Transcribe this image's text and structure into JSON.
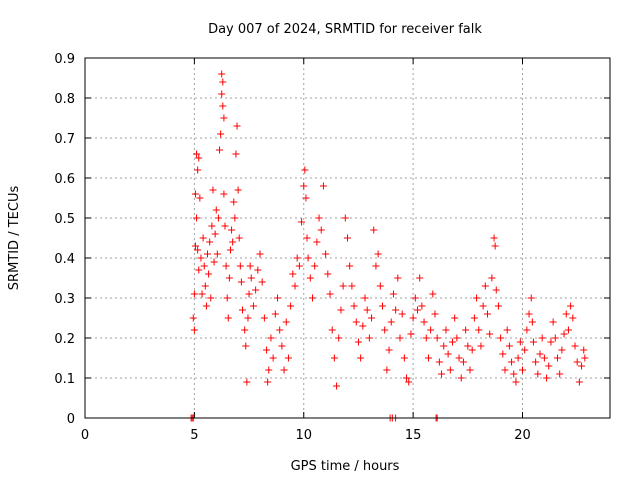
{
  "chart_data": {
    "type": "scatter",
    "title": "Day 007 of 2024, SRMTID for receiver falk",
    "xlabel": "GPS time / hours",
    "ylabel": "SRMTID / TECUs",
    "xlim": [
      0,
      24
    ],
    "ylim": [
      0,
      0.9
    ],
    "grid": true,
    "marker": "+",
    "color": "#ff0000",
    "x_ticks": [
      0,
      5,
      10,
      15,
      20
    ],
    "x_tick_labels": [
      "0",
      "5",
      "10",
      "15",
      "20"
    ],
    "y_ticks": [
      0,
      0.1,
      0.2,
      0.3,
      0.4,
      0.5,
      0.6,
      0.7,
      0.8,
      0.9
    ],
    "y_tick_labels": [
      "0",
      "0.1",
      "0.2",
      "0.3",
      "0.4",
      "0.5",
      "0.6",
      "0.7",
      "0.8",
      "0.9"
    ],
    "series": [
      {
        "name": "SRMTID",
        "points": [
          [
            4.85,
            0.0
          ],
          [
            4.9,
            0.0
          ],
          [
            4.95,
            0.0
          ],
          [
            13.95,
            0.0
          ],
          [
            14.05,
            0.0
          ],
          [
            14.2,
            0.0
          ],
          [
            16.05,
            0.0
          ],
          [
            16.1,
            0.0
          ],
          [
            4.95,
            0.25
          ],
          [
            5.0,
            0.22
          ],
          [
            5.0,
            0.31
          ],
          [
            5.05,
            0.56
          ],
          [
            5.05,
            0.43
          ],
          [
            5.1,
            0.66
          ],
          [
            5.1,
            0.5
          ],
          [
            5.15,
            0.62
          ],
          [
            5.15,
            0.42
          ],
          [
            5.2,
            0.65
          ],
          [
            5.2,
            0.37
          ],
          [
            5.25,
            0.55
          ],
          [
            5.3,
            0.4
          ],
          [
            5.35,
            0.31
          ],
          [
            5.4,
            0.45
          ],
          [
            5.45,
            0.38
          ],
          [
            5.5,
            0.33
          ],
          [
            5.55,
            0.28
          ],
          [
            5.6,
            0.41
          ],
          [
            5.65,
            0.36
          ],
          [
            5.7,
            0.44
          ],
          [
            5.75,
            0.3
          ],
          [
            5.8,
            0.48
          ],
          [
            5.85,
            0.57
          ],
          [
            5.9,
            0.39
          ],
          [
            5.95,
            0.46
          ],
          [
            6.0,
            0.52
          ],
          [
            6.05,
            0.41
          ],
          [
            6.1,
            0.5
          ],
          [
            6.15,
            0.67
          ],
          [
            6.2,
            0.71
          ],
          [
            6.25,
            0.86
          ],
          [
            6.25,
            0.81
          ],
          [
            6.3,
            0.78
          ],
          [
            6.3,
            0.84
          ],
          [
            6.35,
            0.75
          ],
          [
            6.35,
            0.56
          ],
          [
            6.4,
            0.48
          ],
          [
            6.45,
            0.38
          ],
          [
            6.5,
            0.3
          ],
          [
            6.55,
            0.25
          ],
          [
            6.6,
            0.35
          ],
          [
            6.65,
            0.42
          ],
          [
            6.7,
            0.47
          ],
          [
            6.75,
            0.44
          ],
          [
            6.8,
            0.54
          ],
          [
            6.85,
            0.5
          ],
          [
            6.9,
            0.66
          ],
          [
            6.95,
            0.73
          ],
          [
            7.0,
            0.57
          ],
          [
            7.05,
            0.45
          ],
          [
            7.1,
            0.38
          ],
          [
            7.15,
            0.34
          ],
          [
            7.2,
            0.27
          ],
          [
            7.3,
            0.22
          ],
          [
            7.35,
            0.18
          ],
          [
            7.4,
            0.09
          ],
          [
            7.45,
            0.25
          ],
          [
            7.5,
            0.31
          ],
          [
            7.55,
            0.38
          ],
          [
            7.6,
            0.35
          ],
          [
            7.7,
            0.28
          ],
          [
            7.8,
            0.32
          ],
          [
            7.9,
            0.37
          ],
          [
            8.0,
            0.41
          ],
          [
            8.1,
            0.34
          ],
          [
            8.2,
            0.25
          ],
          [
            8.3,
            0.17
          ],
          [
            8.35,
            0.09
          ],
          [
            8.4,
            0.12
          ],
          [
            8.5,
            0.2
          ],
          [
            8.6,
            0.15
          ],
          [
            8.7,
            0.26
          ],
          [
            8.8,
            0.3
          ],
          [
            8.9,
            0.22
          ],
          [
            9.0,
            0.18
          ],
          [
            9.1,
            0.12
          ],
          [
            9.2,
            0.24
          ],
          [
            9.3,
            0.15
          ],
          [
            9.4,
            0.28
          ],
          [
            9.5,
            0.36
          ],
          [
            9.6,
            0.33
          ],
          [
            9.7,
            0.4
          ],
          [
            9.8,
            0.38
          ],
          [
            9.9,
            0.49
          ],
          [
            10.0,
            0.58
          ],
          [
            10.05,
            0.62
          ],
          [
            10.1,
            0.55
          ],
          [
            10.15,
            0.45
          ],
          [
            10.2,
            0.4
          ],
          [
            10.3,
            0.35
          ],
          [
            10.4,
            0.3
          ],
          [
            10.5,
            0.38
          ],
          [
            10.6,
            0.44
          ],
          [
            10.7,
            0.5
          ],
          [
            10.8,
            0.47
          ],
          [
            10.9,
            0.58
          ],
          [
            11.0,
            0.41
          ],
          [
            11.1,
            0.36
          ],
          [
            11.2,
            0.31
          ],
          [
            11.3,
            0.22
          ],
          [
            11.4,
            0.15
          ],
          [
            11.5,
            0.08
          ],
          [
            11.6,
            0.2
          ],
          [
            11.7,
            0.27
          ],
          [
            11.8,
            0.33
          ],
          [
            11.9,
            0.5
          ],
          [
            12.0,
            0.45
          ],
          [
            12.1,
            0.38
          ],
          [
            12.2,
            0.33
          ],
          [
            12.3,
            0.28
          ],
          [
            12.4,
            0.24
          ],
          [
            12.5,
            0.19
          ],
          [
            12.6,
            0.15
          ],
          [
            12.7,
            0.23
          ],
          [
            12.8,
            0.3
          ],
          [
            12.9,
            0.27
          ],
          [
            13.0,
            0.2
          ],
          [
            13.1,
            0.25
          ],
          [
            13.2,
            0.47
          ],
          [
            13.3,
            0.38
          ],
          [
            13.4,
            0.41
          ],
          [
            13.5,
            0.33
          ],
          [
            13.6,
            0.28
          ],
          [
            13.7,
            0.22
          ],
          [
            13.8,
            0.12
          ],
          [
            13.9,
            0.17
          ],
          [
            14.0,
            0.24
          ],
          [
            14.1,
            0.31
          ],
          [
            14.2,
            0.27
          ],
          [
            14.3,
            0.35
          ],
          [
            14.4,
            0.2
          ],
          [
            14.5,
            0.26
          ],
          [
            14.6,
            0.15
          ],
          [
            14.7,
            0.1
          ],
          [
            14.8,
            0.09
          ],
          [
            14.9,
            0.21
          ],
          [
            15.0,
            0.25
          ],
          [
            15.1,
            0.3
          ],
          [
            15.2,
            0.27
          ],
          [
            15.3,
            0.35
          ],
          [
            15.4,
            0.28
          ],
          [
            15.5,
            0.24
          ],
          [
            15.6,
            0.2
          ],
          [
            15.7,
            0.15
          ],
          [
            15.8,
            0.22
          ],
          [
            15.9,
            0.31
          ],
          [
            16.0,
            0.26
          ],
          [
            16.1,
            0.2
          ],
          [
            16.2,
            0.14
          ],
          [
            16.3,
            0.11
          ],
          [
            16.4,
            0.18
          ],
          [
            16.5,
            0.22
          ],
          [
            16.6,
            0.16
          ],
          [
            16.7,
            0.12
          ],
          [
            16.8,
            0.19
          ],
          [
            16.9,
            0.25
          ],
          [
            17.0,
            0.2
          ],
          [
            17.1,
            0.15
          ],
          [
            17.2,
            0.1
          ],
          [
            17.3,
            0.14
          ],
          [
            17.4,
            0.22
          ],
          [
            17.5,
            0.18
          ],
          [
            17.6,
            0.12
          ],
          [
            17.7,
            0.17
          ],
          [
            17.8,
            0.25
          ],
          [
            17.9,
            0.3
          ],
          [
            18.0,
            0.22
          ],
          [
            18.1,
            0.18
          ],
          [
            18.2,
            0.28
          ],
          [
            18.3,
            0.33
          ],
          [
            18.4,
            0.26
          ],
          [
            18.5,
            0.21
          ],
          [
            18.6,
            0.35
          ],
          [
            18.7,
            0.45
          ],
          [
            18.75,
            0.43
          ],
          [
            18.8,
            0.32
          ],
          [
            18.9,
            0.28
          ],
          [
            19.0,
            0.2
          ],
          [
            19.1,
            0.16
          ],
          [
            19.2,
            0.12
          ],
          [
            19.3,
            0.22
          ],
          [
            19.4,
            0.18
          ],
          [
            19.5,
            0.14
          ],
          [
            19.6,
            0.11
          ],
          [
            19.7,
            0.09
          ],
          [
            19.8,
            0.15
          ],
          [
            19.9,
            0.19
          ],
          [
            20.0,
            0.12
          ],
          [
            20.1,
            0.17
          ],
          [
            20.2,
            0.22
          ],
          [
            20.3,
            0.26
          ],
          [
            20.4,
            0.3
          ],
          [
            20.45,
            0.24
          ],
          [
            20.5,
            0.19
          ],
          [
            20.6,
            0.14
          ],
          [
            20.7,
            0.11
          ],
          [
            20.8,
            0.16
          ],
          [
            20.9,
            0.2
          ],
          [
            21.0,
            0.15
          ],
          [
            21.1,
            0.1
          ],
          [
            21.2,
            0.13
          ],
          [
            21.3,
            0.19
          ],
          [
            21.4,
            0.24
          ],
          [
            21.5,
            0.2
          ],
          [
            21.6,
            0.15
          ],
          [
            21.7,
            0.11
          ],
          [
            21.8,
            0.17
          ],
          [
            21.9,
            0.21
          ],
          [
            22.0,
            0.26
          ],
          [
            22.1,
            0.22
          ],
          [
            22.2,
            0.28
          ],
          [
            22.3,
            0.25
          ],
          [
            22.4,
            0.18
          ],
          [
            22.5,
            0.14
          ],
          [
            22.6,
            0.09
          ],
          [
            22.7,
            0.13
          ],
          [
            22.8,
            0.17
          ],
          [
            22.85,
            0.15
          ]
        ]
      }
    ]
  }
}
